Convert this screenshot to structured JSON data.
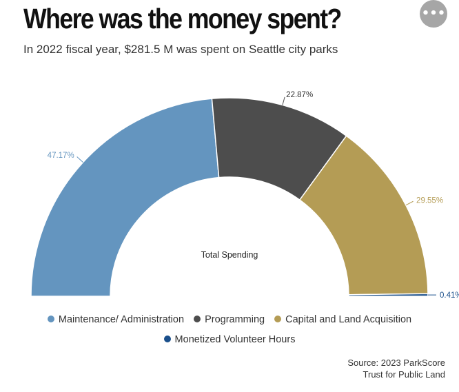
{
  "header": {
    "title": "Where was the money spent?",
    "subtitle": "In 2022 fiscal year, $281.5 M was spent on Seattle city parks",
    "menu_label": "•••"
  },
  "chart_data": {
    "type": "pie",
    "variant": "semi-donut",
    "title": "Where was the money spent?",
    "subtitle": "In 2022 fiscal year, $281.5 M was spent on Seattle city parks",
    "center_label": "Total Spending",
    "categories": [
      "Maintenance/ Administration",
      "Programming",
      "Capital and Land Acquisition",
      "Monetized Volunteer Hours"
    ],
    "values": [
      47.17,
      22.87,
      29.55,
      0.41
    ],
    "value_labels": [
      "47.17%",
      "22.87%",
      "29.55%",
      "0.41%"
    ],
    "colors": [
      "#6495bf",
      "#4d4d4d",
      "#b49c55",
      "#1a4f8b"
    ],
    "legend_position": "bottom"
  },
  "legend": {
    "rows": [
      [
        {
          "label": "Maintenance/ Administration",
          "color": "#6495bf"
        },
        {
          "label": "Programming",
          "color": "#4d4d4d"
        },
        {
          "label": "Capital and Land Acquisition",
          "color": "#b49c55"
        }
      ],
      [
        {
          "label": "Monetized Volunteer Hours",
          "color": "#1a4f8b"
        }
      ]
    ]
  },
  "source": {
    "line1": "Source: 2023 ParkScore",
    "line2": "Trust for Public Land"
  }
}
